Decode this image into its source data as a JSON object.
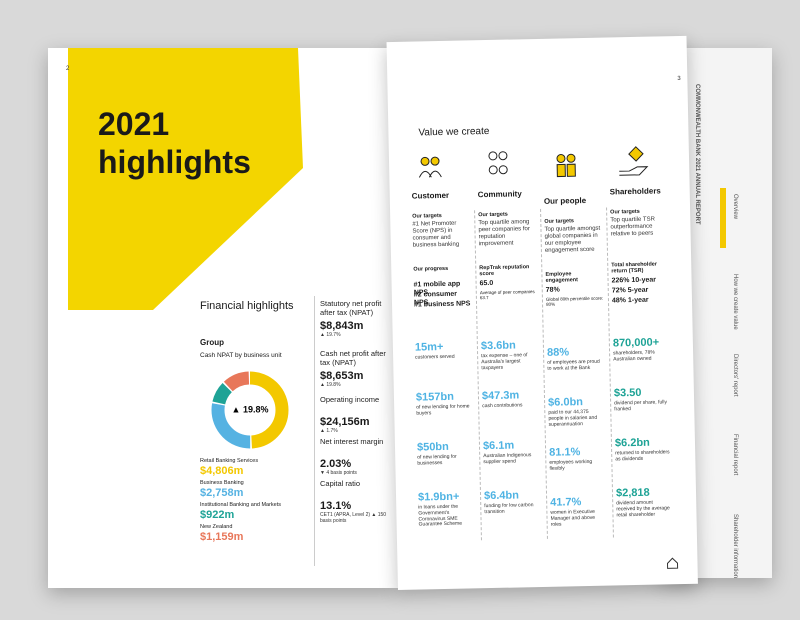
{
  "left_page": {
    "page_number": "2",
    "title_line1": "2021",
    "title_line2": "highlights",
    "section": "Financial highlights",
    "group": "Group",
    "chart": {
      "type": "donut",
      "title": "Cash NPAT by business unit",
      "center_label": "▲ 19.8%",
      "categories": [
        "Retail Banking Services",
        "Business Banking",
        "Institutional Banking and Markets",
        "New Zealand"
      ],
      "values": [
        4806,
        2758,
        922,
        1159
      ],
      "value_labels": [
        "$4,806m",
        "$2,758m",
        "$922m",
        "$1,159m"
      ],
      "colors": [
        "#f3c800",
        "#55b2e2",
        "#1ea396",
        "#e8775a"
      ]
    },
    "metrics": [
      {
        "label": "Statutory net profit after tax (NPAT)",
        "value": "$8,843m",
        "change": "▲ 19.7%"
      },
      {
        "label": "Cash net profit after tax (NPAT)",
        "value": "$8,653m",
        "change": "▲ 19.8%"
      },
      {
        "label": "Operating income",
        "value": "$24,156m",
        "change": "▲ 1.7%"
      },
      {
        "label": "Net interest margin",
        "value": "2.03%",
        "change": "▼ 4 basis points"
      },
      {
        "label": "Capital ratio",
        "value": "13.1%",
        "change": "CET1 (APRA, Level 2) ▲ 150 basis points"
      }
    ]
  },
  "right_page": {
    "page_number": "3",
    "title": "Value we create",
    "columns": [
      {
        "name": "Customer",
        "targets_heading": "Our targets",
        "target": "#1 Net Promoter Score (NPS) in consumer and business banking",
        "progress_heading": "Our progress",
        "progress": [
          "#1 mobile app NPS",
          "#2 consumer NPS",
          "#1 business NPS"
        ],
        "stats": [
          {
            "value": "15m+",
            "desc": "customers served"
          },
          {
            "value": "$157bn",
            "desc": "of new lending for home buyers"
          },
          {
            "value": "$50bn",
            "desc": "of new lending for businesses"
          },
          {
            "value": "$1.9bn+",
            "desc": "in loans under the Government's Coronavirus SME Guarantee Scheme"
          }
        ]
      },
      {
        "name": "Community",
        "targets_heading": "Our targets",
        "target": "Top quartile among peer companies for reputation improvement",
        "progress_heading": "RepTrak reputation score",
        "progress": [
          "65.0",
          "Average of peer companies 63.7"
        ],
        "stats": [
          {
            "value": "$3.6bn",
            "desc": "tax expense – one of Australia's largest taxpayers"
          },
          {
            "value": "$47.3m",
            "desc": "cash contributions"
          },
          {
            "value": "$6.1m",
            "desc": "Australian Indigenous supplier spend"
          },
          {
            "value": "$6.4bn",
            "desc": "funding for low carbon transition"
          }
        ]
      },
      {
        "name": "Our people",
        "targets_heading": "Our targets",
        "target": "Top quartile amongst global companies in our employee engagement score",
        "progress_heading": "Employee engagement",
        "progress": [
          "78%",
          "Global 80th percentile score: 80%"
        ],
        "stats": [
          {
            "value": "88%",
            "desc": "of employees are proud to work at the Bank"
          },
          {
            "value": "$6.0bn",
            "desc": "paid to our 44,375 people in salaries and superannuation"
          },
          {
            "value": "81.1%",
            "desc": "employees working flexibly"
          },
          {
            "value": "41.7%",
            "desc": "women in Executive Manager and above roles"
          }
        ]
      },
      {
        "name": "Shareholders",
        "targets_heading": "Our targets",
        "target": "Top quartile TSR outperformance relative to peers",
        "progress_heading": "Total shareholder return (TSR)",
        "progress": [
          "226% 10-year",
          "72% 5-year",
          "48% 1-year"
        ],
        "stats": [
          {
            "value": "870,000+",
            "desc": "shareholders, 78% Australian owned"
          },
          {
            "value": "$3.50",
            "desc": "dividend per share, fully franked"
          },
          {
            "value": "$6.2bn",
            "desc": "returned to shareholders as dividends"
          },
          {
            "value": "$2,818",
            "desc": "dividend amount received by the average retail shareholder"
          }
        ]
      }
    ]
  },
  "back_page": {
    "header": "COMMONWEALTH BANK 2021 ANNUAL REPORT",
    "tabs": [
      "Overview",
      "How we create value",
      "Directors' report",
      "Financial report",
      "Shareholder information"
    ]
  }
}
